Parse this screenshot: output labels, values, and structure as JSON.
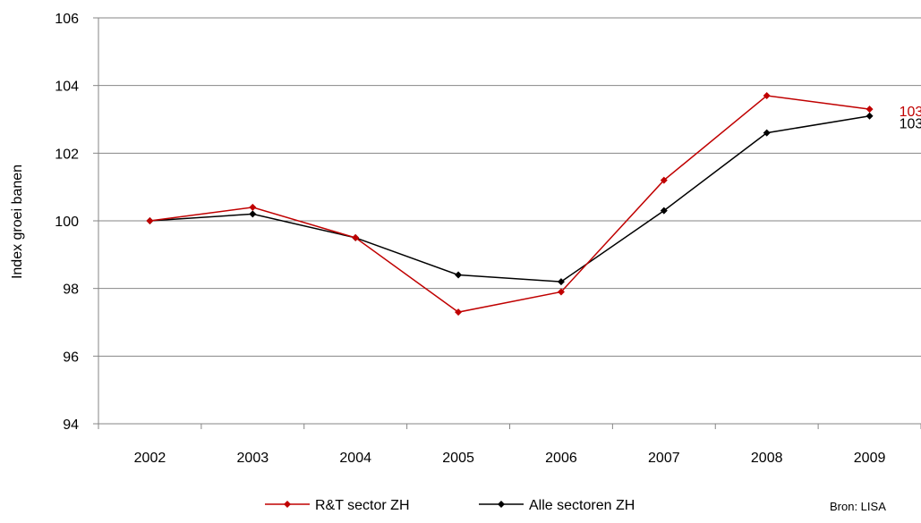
{
  "chart_data": {
    "type": "line",
    "categories": [
      "2002",
      "2003",
      "2004",
      "2005",
      "2006",
      "2007",
      "2008",
      "2009"
    ],
    "series": [
      {
        "name": "R&T sector ZH",
        "color": "#c00000",
        "values": [
          100.0,
          100.4,
          99.5,
          97.3,
          97.9,
          101.2,
          103.7,
          103.3
        ]
      },
      {
        "name": "Alle sectoren ZH",
        "color": "#000000",
        "values": [
          100.0,
          100.2,
          99.5,
          98.4,
          98.2,
          100.3,
          102.6,
          103.1
        ]
      }
    ],
    "end_labels": [
      "103",
      "103"
    ],
    "ylabel": "Index groei banen",
    "xlabel": "",
    "ylim": [
      94,
      106
    ],
    "yticks": [
      "94",
      "96",
      "98",
      "100",
      "102",
      "104",
      "106"
    ],
    "grid": true,
    "legend_position": "bottom",
    "source": "Bron: LISA"
  }
}
